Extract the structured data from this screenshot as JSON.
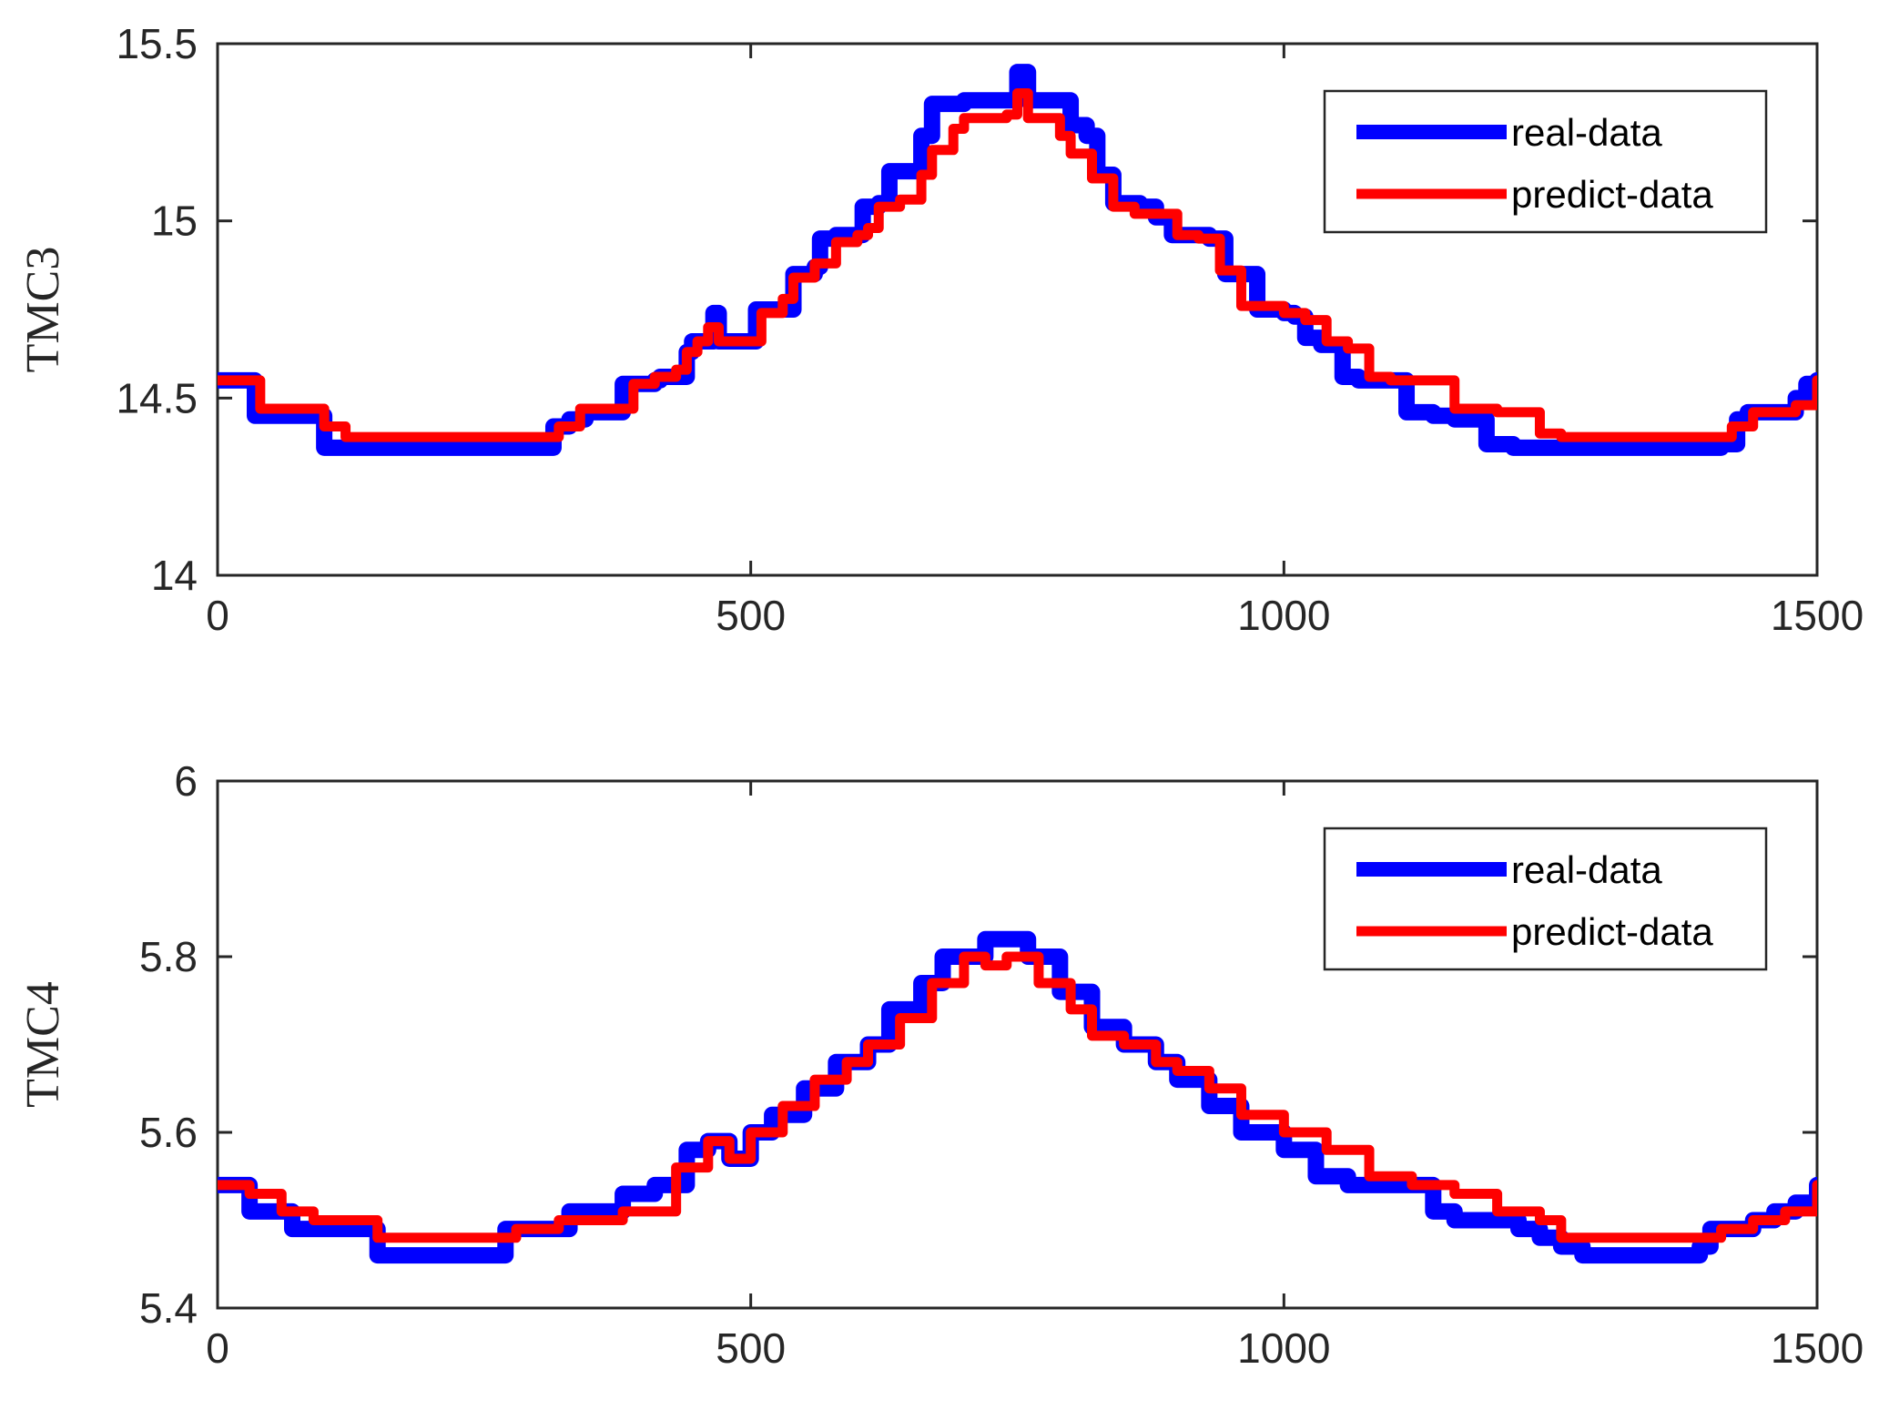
{
  "chart_data": [
    {
      "type": "line",
      "title": "",
      "xlabel": "",
      "ylabel": "TMC3",
      "xlim": [
        0,
        1500
      ],
      "ylim": [
        14,
        15.5
      ],
      "xticks": [
        "0",
        "500",
        "1000",
        "1500"
      ],
      "yticks": [
        "14",
        "14.5",
        "15",
        "15.5"
      ],
      "legend_position": "top-right",
      "series": [
        {
          "name": "real-data",
          "color": "#0000ff",
          "x": [
            0,
            30,
            35,
            95,
            100,
            310,
            315,
            330,
            345,
            375,
            380,
            410,
            415,
            425,
            440,
            445,
            460,
            465,
            470,
            500,
            505,
            535,
            540,
            560,
            565,
            580,
            590,
            600,
            605,
            620,
            630,
            660,
            670,
            700,
            740,
            750,
            760,
            790,
            800,
            815,
            825,
            840,
            865,
            880,
            895,
            930,
            945,
            975,
            1000,
            1010,
            1020,
            1035,
            1055,
            1070,
            1085,
            1100,
            1115,
            1140,
            1160,
            1190,
            1215,
            1250,
            1260,
            1280,
            1300,
            1330,
            1360,
            1390,
            1410,
            1425,
            1435,
            1450,
            1470,
            1480,
            1490,
            1500
          ],
          "y": [
            14.55,
            14.55,
            14.45,
            14.45,
            14.36,
            14.36,
            14.42,
            14.44,
            14.46,
            14.46,
            14.54,
            14.55,
            14.56,
            14.56,
            14.63,
            14.66,
            14.66,
            14.74,
            14.66,
            14.66,
            14.75,
            14.75,
            14.85,
            14.87,
            14.95,
            14.96,
            14.96,
            14.96,
            15.04,
            15.05,
            15.14,
            15.24,
            15.33,
            15.34,
            15.34,
            15.42,
            15.34,
            15.34,
            15.27,
            15.24,
            15.13,
            15.05,
            15.04,
            15.01,
            14.96,
            14.95,
            14.85,
            14.75,
            14.74,
            14.73,
            14.67,
            14.65,
            14.56,
            14.55,
            14.55,
            14.55,
            14.46,
            14.45,
            14.44,
            14.37,
            14.36,
            14.36,
            14.36,
            14.36,
            14.36,
            14.36,
            14.36,
            14.36,
            14.37,
            14.44,
            14.46,
            14.46,
            14.46,
            14.5,
            14.54,
            14.55
          ]
        },
        {
          "name": "predict-data",
          "color": "#ff0000",
          "x": [
            0,
            30,
            40,
            90,
            100,
            120,
            300,
            310,
            320,
            340,
            380,
            390,
            410,
            430,
            440,
            450,
            460,
            470,
            500,
            510,
            530,
            540,
            560,
            580,
            600,
            610,
            620,
            640,
            660,
            670,
            690,
            700,
            720,
            740,
            750,
            760,
            790,
            800,
            820,
            840,
            860,
            880,
            900,
            920,
            940,
            960,
            1000,
            1020,
            1040,
            1060,
            1080,
            1100,
            1120,
            1140,
            1160,
            1200,
            1240,
            1260,
            1300,
            1380,
            1420,
            1440,
            1480,
            1500
          ],
          "y": [
            14.55,
            14.55,
            14.47,
            14.47,
            14.42,
            14.39,
            14.39,
            14.39,
            14.42,
            14.47,
            14.47,
            14.54,
            14.56,
            14.58,
            14.63,
            14.66,
            14.7,
            14.66,
            14.66,
            14.74,
            14.78,
            14.84,
            14.88,
            14.94,
            14.96,
            14.98,
            15.04,
            15.06,
            15.13,
            15.2,
            15.26,
            15.29,
            15.29,
            15.3,
            15.36,
            15.29,
            15.24,
            15.19,
            15.12,
            15.04,
            15.02,
            15.02,
            14.96,
            14.95,
            14.86,
            14.76,
            14.74,
            14.72,
            14.66,
            14.64,
            14.56,
            14.55,
            14.55,
            14.55,
            14.47,
            14.46,
            14.4,
            14.39,
            14.39,
            14.39,
            14.42,
            14.46,
            14.48,
            14.55
          ]
        }
      ]
    },
    {
      "type": "line",
      "title": "",
      "xlabel": "",
      "ylabel": "TMC4",
      "xlim": [
        0,
        1500
      ],
      "ylim": [
        5.4,
        6.0
      ],
      "xticks": [
        "0",
        "500",
        "1000",
        "1500"
      ],
      "yticks": [
        "5.4",
        "5.6",
        "5.8",
        "6"
      ],
      "legend_position": "top-right",
      "series": [
        {
          "name": "real-data",
          "color": "#0000ff",
          "x": [
            0,
            30,
            70,
            150,
            250,
            270,
            330,
            380,
            410,
            440,
            460,
            480,
            500,
            520,
            550,
            580,
            610,
            630,
            660,
            680,
            720,
            750,
            760,
            790,
            820,
            850,
            880,
            900,
            930,
            960,
            1000,
            1030,
            1060,
            1090,
            1140,
            1160,
            1220,
            1240,
            1260,
            1280,
            1340,
            1390,
            1400,
            1440,
            1460,
            1480,
            1500
          ],
          "y": [
            5.54,
            5.51,
            5.49,
            5.46,
            5.46,
            5.49,
            5.51,
            5.53,
            5.54,
            5.58,
            5.59,
            5.57,
            5.6,
            5.62,
            5.65,
            5.68,
            5.7,
            5.74,
            5.77,
            5.8,
            5.82,
            5.82,
            5.8,
            5.76,
            5.72,
            5.7,
            5.68,
            5.66,
            5.63,
            5.6,
            5.58,
            5.55,
            5.54,
            5.54,
            5.51,
            5.5,
            5.49,
            5.48,
            5.47,
            5.46,
            5.46,
            5.47,
            5.49,
            5.5,
            5.51,
            5.52,
            5.54
          ]
        },
        {
          "name": "predict-data",
          "color": "#ff0000",
          "x": [
            0,
            30,
            60,
            90,
            150,
            200,
            280,
            320,
            380,
            430,
            460,
            480,
            500,
            530,
            560,
            590,
            610,
            640,
            670,
            700,
            720,
            740,
            770,
            800,
            820,
            850,
            880,
            900,
            930,
            960,
            1000,
            1040,
            1080,
            1120,
            1160,
            1200,
            1240,
            1260,
            1290,
            1340,
            1380,
            1410,
            1440,
            1470,
            1500
          ],
          "y": [
            5.54,
            5.53,
            5.51,
            5.5,
            5.48,
            5.48,
            5.49,
            5.5,
            5.51,
            5.56,
            5.59,
            5.57,
            5.6,
            5.63,
            5.66,
            5.68,
            5.7,
            5.73,
            5.77,
            5.8,
            5.79,
            5.8,
            5.77,
            5.74,
            5.71,
            5.7,
            5.68,
            5.67,
            5.65,
            5.62,
            5.6,
            5.58,
            5.55,
            5.54,
            5.53,
            5.51,
            5.5,
            5.48,
            5.48,
            5.48,
            5.48,
            5.49,
            5.5,
            5.51,
            5.54
          ]
        }
      ]
    }
  ]
}
